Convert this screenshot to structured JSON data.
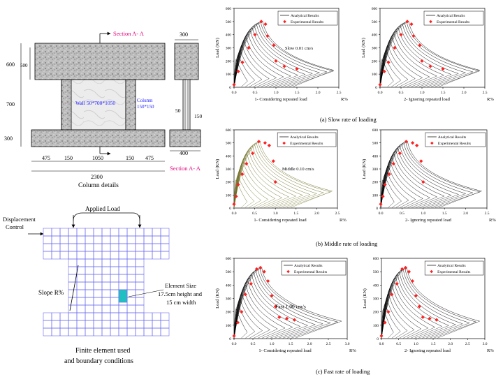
{
  "column_details": {
    "section_label_top": "Section A- A",
    "section_label_bottom": "Section A- A",
    "wall_label": "Wall 50*700*1050",
    "column_label_1": "Column",
    "column_label_2": "150*150",
    "dims": {
      "d600": "600",
      "d500": "500",
      "d700": "700",
      "d300_left": "300",
      "d300_top": "300",
      "d50": "50",
      "d150_right": "150",
      "d400": "400",
      "b475a": "475",
      "b150a": "150",
      "b1050": "1050",
      "b150b": "150",
      "b475b": "475",
      "b2300": "2300"
    },
    "caption": "Column details"
  },
  "finite_element": {
    "applied_load": "Applied Load",
    "displacement_control_1": "Displacement",
    "displacement_control_2": "Control",
    "slope": "Slope R%",
    "element_size_1": "Element Size",
    "element_size_2": "17.5cm height and",
    "element_size_3": "15 cm width",
    "caption_1": "Finite element used",
    "caption_2": "and boundary conditions"
  },
  "chart_data": [
    {
      "type": "line",
      "panel": "a-left",
      "ylabel": "Load (KN)",
      "xlabel": "1- Considering repeated load",
      "xunit": "R%",
      "yticks": [
        "0",
        "100",
        "200",
        "300",
        "400",
        "500",
        "600"
      ],
      "xticks": [
        "0.0",
        "0.5",
        "1.0",
        "1.5",
        "2.0",
        "2.5"
      ],
      "ylim": [
        0,
        600
      ],
      "xlim": [
        0,
        2.5
      ],
      "legend": [
        "Analytical Results",
        "Experimental Results"
      ],
      "annotation": "Slow 0.01 cm/s",
      "series": [
        {
          "name": "Experimental Results",
          "x": [
            0.0,
            0.1,
            0.2,
            0.35,
            0.5,
            0.65,
            0.75,
            0.8,
            0.95,
            1.0,
            1.2,
            1.5
          ],
          "y": [
            20,
            120,
            190,
            300,
            400,
            500,
            480,
            390,
            320,
            200,
            160,
            140
          ]
        }
      ]
    },
    {
      "type": "line",
      "panel": "a-right",
      "ylabel": "Load (KN)",
      "xlabel": "2- Ignoring repeated load",
      "xunit": "R%",
      "yticks": [
        "0",
        "100",
        "200",
        "300",
        "400",
        "500",
        "600"
      ],
      "xticks": [
        "0.0",
        "0.5",
        "1.0",
        "1.5",
        "2.0",
        "2.5"
      ],
      "ylim": [
        0,
        600
      ],
      "xlim": [
        0,
        2.5
      ],
      "legend": [
        "Analytical Results",
        "Experimental Results"
      ],
      "series": [
        {
          "name": "Experimental Results",
          "x": [
            0.0,
            0.1,
            0.2,
            0.35,
            0.5,
            0.65,
            0.75,
            0.8,
            0.95,
            1.0,
            1.2,
            1.5
          ],
          "y": [
            20,
            120,
            190,
            300,
            400,
            500,
            480,
            390,
            320,
            200,
            160,
            140
          ]
        }
      ]
    },
    {
      "type": "line",
      "panel": "b-left",
      "ylabel": "Load (KN)",
      "xlabel": "1- Considering repeated load",
      "xunit": "R%",
      "yticks": [
        "0",
        "100",
        "200",
        "300",
        "400",
        "500",
        "600"
      ],
      "xticks": [
        "0.0",
        "0.5",
        "1.0",
        "1.5",
        "2.0",
        "2.5"
      ],
      "ylim": [
        0,
        600
      ],
      "xlim": [
        0,
        2.5
      ],
      "legend": [
        "Analytical Results",
        "Experimental Results"
      ],
      "annotation": "Middle 0.10 cm/s",
      "series": [
        {
          "name": "Experimental Results",
          "x": [
            0.0,
            0.05,
            0.1,
            0.2,
            0.3,
            0.45,
            0.6,
            0.75,
            0.85,
            0.95,
            1.0
          ],
          "y": [
            30,
            90,
            180,
            260,
            340,
            420,
            510,
            500,
            480,
            360,
            200
          ]
        }
      ]
    },
    {
      "type": "line",
      "panel": "b-right",
      "ylabel": "Load (KN)",
      "xlabel": "2- Ignoring repeated load",
      "xunit": "R%",
      "yticks": [
        "0",
        "100",
        "200",
        "300",
        "400",
        "500",
        "600"
      ],
      "xticks": [
        "0.0",
        "0.5",
        "1.0",
        "1.5",
        "2.0",
        "2.5"
      ],
      "ylim": [
        0,
        600
      ],
      "xlim": [
        0,
        2.5
      ],
      "legend": [
        "Analytical Results",
        "Experimental Results"
      ],
      "series": [
        {
          "name": "Experimental Results",
          "x": [
            0.0,
            0.05,
            0.1,
            0.2,
            0.3,
            0.45,
            0.6,
            0.75,
            0.85,
            0.95,
            1.0
          ],
          "y": [
            30,
            90,
            180,
            260,
            340,
            420,
            510,
            500,
            480,
            360,
            200
          ]
        }
      ]
    },
    {
      "type": "line",
      "panel": "c-left",
      "ylabel": "Load (KN)",
      "xlabel": "1- Considering repeated load",
      "xunit": "R%",
      "yticks": [
        "0",
        "100",
        "200",
        "300",
        "400",
        "500",
        "600"
      ],
      "xticks": [
        "0.0",
        "0.5",
        "1.0",
        "1.5",
        "2.0",
        "2.5",
        "3.0"
      ],
      "ylim": [
        0,
        600
      ],
      "xlim": [
        0,
        3.0
      ],
      "legend": [
        "Analytical Results",
        "Experimental Results"
      ],
      "annotation": "Fast 1.00 cm/s",
      "series": [
        {
          "name": "Experimental Results",
          "x": [
            0.0,
            0.1,
            0.2,
            0.3,
            0.45,
            0.6,
            0.7,
            0.8,
            0.9,
            1.0,
            1.1,
            1.2,
            1.4,
            1.6
          ],
          "y": [
            20,
            120,
            200,
            330,
            410,
            520,
            530,
            500,
            430,
            320,
            240,
            160,
            150,
            140
          ]
        }
      ]
    },
    {
      "type": "line",
      "panel": "c-right",
      "ylabel": "Load (KN)",
      "xlabel": "2- Ignoring repeated load",
      "xunit": "R%",
      "yticks": [
        "0",
        "100",
        "200",
        "300",
        "400",
        "500",
        "600"
      ],
      "xticks": [
        "0.0",
        "0.5",
        "1.0",
        "1.5",
        "2.0",
        "2.5",
        "3.0"
      ],
      "ylim": [
        0,
        600
      ],
      "xlim": [
        0,
        3.0
      ],
      "legend": [
        "Analytical Results",
        "Experimental Results"
      ],
      "series": [
        {
          "name": "Experimental Results",
          "x": [
            0.0,
            0.1,
            0.2,
            0.3,
            0.45,
            0.6,
            0.7,
            0.8,
            0.9,
            1.0,
            1.1,
            1.2,
            1.4,
            1.6
          ],
          "y": [
            20,
            120,
            200,
            330,
            410,
            520,
            530,
            500,
            430,
            320,
            240,
            160,
            150,
            140
          ]
        }
      ]
    }
  ],
  "captions": {
    "a": "(a) Slow rate of loading",
    "b": "(b) Middle rate of loading",
    "c": "(c) Fast rate of loading"
  },
  "colors": {
    "experimental": "#ff2020",
    "section_label": "#e0007a",
    "wall_label": "#1a1aff",
    "grid": "#6a6af0",
    "element": "#20c0c0",
    "annotation_pink": "#c0006a"
  }
}
